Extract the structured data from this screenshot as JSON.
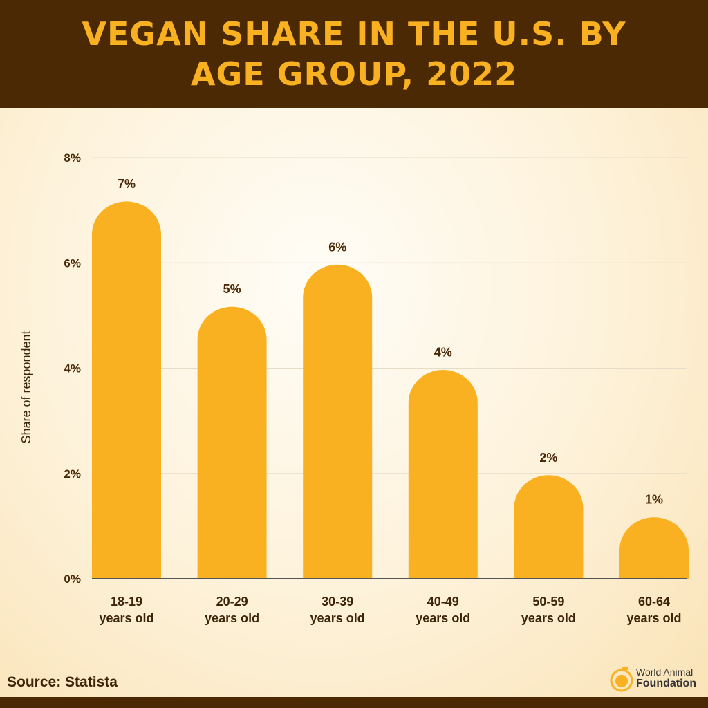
{
  "chart_data": {
    "type": "bar",
    "title": "VEGAN SHARE IN THE U.S. BY AGE GROUP, 2022",
    "ylabel": "Share of respondent",
    "xlabel": "",
    "categories": [
      [
        "18-19",
        "years old"
      ],
      [
        "20-29",
        "years old"
      ],
      [
        "30-39",
        "years old"
      ],
      [
        "40-49",
        "years old"
      ],
      [
        "50-59",
        "years old"
      ],
      [
        "60-64",
        "years old"
      ]
    ],
    "values": [
      7.2,
      5.2,
      6.0,
      4.0,
      2.0,
      1.2
    ],
    "data_labels": [
      "7%",
      "5%",
      "6%",
      "4%",
      "2%",
      "1%"
    ],
    "ylim": [
      0,
      8
    ],
    "yticks": [
      {
        "v": 0,
        "label": "0%"
      },
      {
        "v": 2,
        "label": "2%"
      },
      {
        "v": 4,
        "label": "4%"
      },
      {
        "v": 6,
        "label": "6%"
      },
      {
        "v": 8,
        "label": "8%"
      }
    ],
    "grid": true,
    "colors": {
      "bar": "#f9b122",
      "header": "#4a2904",
      "title": "#f9b122"
    }
  },
  "footer": {
    "source": "Source: Statista"
  },
  "logo": {
    "line1": "World Animal",
    "line2": "Foundation"
  }
}
